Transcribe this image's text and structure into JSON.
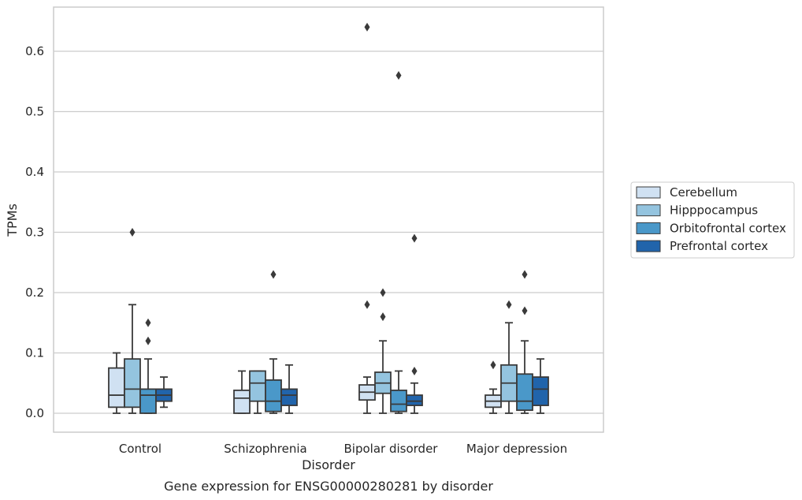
{
  "chart_data": {
    "type": "box",
    "xlabel": "Disorder",
    "ylabel": "TPMs",
    "caption": "Gene expression for ENSG00000280281 by disorder",
    "ylim": [
      -0.032,
      0.675
    ],
    "yticks": [
      "0.0",
      "0.1",
      "0.2",
      "0.3",
      "0.4",
      "0.5",
      "0.6"
    ],
    "grid": true,
    "legend_position": "right",
    "categories": [
      "Control",
      "Schizophrenia",
      "Bipolar disorder",
      "Major depression"
    ],
    "series": [
      {
        "name": "Cerebellum",
        "color": "#d0e1f2",
        "boxes": [
          {
            "whislo": 0.0,
            "q1": 0.01,
            "med": 0.03,
            "q3": 0.075,
            "whishi": 0.1,
            "fliers": []
          },
          {
            "whislo": 0.0,
            "q1": 0.0,
            "med": 0.025,
            "q3": 0.038,
            "whishi": 0.07,
            "fliers": []
          },
          {
            "whislo": 0.0,
            "q1": 0.022,
            "med": 0.035,
            "q3": 0.047,
            "whishi": 0.06,
            "fliers": [
              0.18,
              0.64
            ]
          },
          {
            "whislo": 0.0,
            "q1": 0.01,
            "med": 0.02,
            "q3": 0.03,
            "whishi": 0.04,
            "fliers": [
              0.08
            ]
          }
        ]
      },
      {
        "name": "Hipppocampus",
        "color": "#94c4df",
        "boxes": [
          {
            "whislo": 0.0,
            "q1": 0.01,
            "med": 0.04,
            "q3": 0.09,
            "whishi": 0.18,
            "fliers": [
              0.3
            ]
          },
          {
            "whislo": 0.0,
            "q1": 0.02,
            "med": 0.05,
            "q3": 0.07,
            "whishi": 0.07,
            "fliers": []
          },
          {
            "whislo": 0.0,
            "q1": 0.033,
            "med": 0.05,
            "q3": 0.068,
            "whishi": 0.12,
            "fliers": [
              0.16,
              0.2
            ]
          },
          {
            "whislo": 0.0,
            "q1": 0.02,
            "med": 0.05,
            "q3": 0.08,
            "whishi": 0.15,
            "fliers": [
              0.18
            ]
          }
        ]
      },
      {
        "name": "Orbitofrontal cortex",
        "color": "#4a98c9",
        "boxes": [
          {
            "whislo": 0.0,
            "q1": 0.0,
            "med": 0.03,
            "q3": 0.04,
            "whishi": 0.09,
            "fliers": [
              0.12,
              0.15
            ]
          },
          {
            "whislo": 0.0,
            "q1": 0.003,
            "med": 0.02,
            "q3": 0.055,
            "whishi": 0.09,
            "fliers": [
              0.23
            ]
          },
          {
            "whislo": 0.0,
            "q1": 0.003,
            "med": 0.015,
            "q3": 0.038,
            "whishi": 0.07,
            "fliers": [
              0.56
            ]
          },
          {
            "whislo": 0.0,
            "q1": 0.005,
            "med": 0.02,
            "q3": 0.065,
            "whishi": 0.12,
            "fliers": [
              0.17,
              0.23
            ]
          }
        ]
      },
      {
        "name": "Prefrontal cortex",
        "color": "#2164ab",
        "boxes": [
          {
            "whislo": 0.01,
            "q1": 0.02,
            "med": 0.03,
            "q3": 0.04,
            "whishi": 0.06,
            "fliers": []
          },
          {
            "whislo": 0.0,
            "q1": 0.013,
            "med": 0.03,
            "q3": 0.04,
            "whishi": 0.08,
            "fliers": []
          },
          {
            "whislo": 0.0,
            "q1": 0.013,
            "med": 0.02,
            "q3": 0.03,
            "whishi": 0.05,
            "fliers": [
              0.07,
              0.29
            ]
          },
          {
            "whislo": 0.0,
            "q1": 0.013,
            "med": 0.04,
            "q3": 0.06,
            "whishi": 0.09,
            "fliers": []
          }
        ]
      }
    ]
  }
}
